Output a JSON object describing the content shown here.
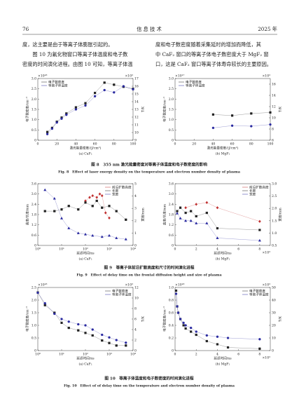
{
  "header": {
    "page": "76",
    "journal": "信 息 技 术",
    "year": "2025 年"
  },
  "paragraphs": {
    "left": [
      "度，这主要是由于等离子体膨胀引起的。",
      "　　图 10 为氟化物窗口等离子体温度和电子数",
      "密度的时间演化进程。由图 10 可知，等离子体温"
    ],
    "right": [
      "度和电子数密度随着采集延时的增加而降低，其",
      "中 CaF₂ 窗口的等离子体电子数密度大于 MgF₂ 窗",
      "口，这是 CaF₂ 窗口等离子体寿命较长的主要原因。"
    ]
  },
  "figures": [
    {
      "caption_cn": "图 8　355 nm 激光能量密度对等离子体温度和电子数密度的影响",
      "caption_en": "Fig. 8　Effect of laser energy density on the temperature and electron number density of plasma",
      "panels": [
        {
          "type": "line",
          "label": "(a) CaF₂",
          "xlabel": "激光能量密度/(J/cm²)",
          "ylabel": "电子数密度/cm⁻³",
          "y2label": "T/K",
          "yexp": "×10¹⁸",
          "y2exp": "×10³",
          "legend": "upper-left",
          "xlim": [
            0,
            100
          ],
          "xticks": [
            0,
            20,
            40,
            60,
            80,
            100
          ],
          "ylim": [
            0,
            3
          ],
          "yticks": [
            0,
            0.5,
            {
              "value": 1,
              "label": "1.0"
            },
            1.5,
            {
              "value": 2,
              "label": "2.0"
            },
            2.5,
            {
              "value": 3,
              "label": "3.0"
            }
          ],
          "y2lim": [
            9,
            17
          ],
          "y2ticks": [
            9,
            10,
            11,
            12,
            13,
            14,
            15,
            16,
            17
          ],
          "series": [
            {
              "name": "电子数密度",
              "color": "#222222",
              "marker": "square",
              "x": [
                10,
                15,
                20,
                25,
                30,
                40,
                50,
                60,
                70,
                80,
                90,
                100
              ],
              "values": [
                0.4,
                0.6,
                0.9,
                1.1,
                1.3,
                1.6,
                1.8,
                2.3,
                2.8,
                2.7,
                2.6,
                2.5
              ]
            },
            {
              "name": "等离子体温度",
              "color": "#2a2aa0",
              "marker": "circle",
              "axis": "y2",
              "x": [
                10,
                15,
                20,
                25,
                30,
                40,
                50,
                60,
                70,
                80,
                90,
                100
              ],
              "values": [
                9.8,
                10.5,
                11.3,
                11.8,
                12.3,
                13,
                13.5,
                14.7,
                15.5,
                15.2,
                16,
                15.6
              ]
            }
          ]
        },
        {
          "type": "line",
          "label": "(b) MgF₂",
          "xlabel": "激光能量密度/(J/cm²)",
          "ylabel": "电子数密度/cm⁻³",
          "y2label": "T/K",
          "yexp": "×10¹⁷",
          "y2exp": "×10³",
          "legend": "upper-left",
          "xlim": [
            0,
            100
          ],
          "xticks": [
            0,
            20,
            40,
            60,
            80,
            100
          ],
          "ylim": [
            0,
            3
          ],
          "yticks": [
            0,
            0.5,
            {
              "value": 1,
              "label": "1.0"
            },
            1.5,
            {
              "value": 2,
              "label": "2.0"
            },
            2.5,
            {
              "value": 3,
              "label": "3.0"
            }
          ],
          "y2lim": [
            6,
            17
          ],
          "y2ticks": [
            6,
            8,
            10,
            12,
            14,
            16
          ],
          "series": [
            {
              "name": "电子数密度",
              "color": "#222222",
              "marker": "square",
              "x": [
                40,
                60,
                80,
                100
              ],
              "values": [
                1.25,
                1.2,
                1.3,
                1.35
              ]
            },
            {
              "name": "等离子体温度",
              "color": "#2a2aa0",
              "marker": "circle",
              "axis": "y2",
              "x": [
                40,
                60,
                80,
                100
              ],
              "values": [
                8.2,
                8.6,
                8.5,
                8.8
              ]
            }
          ]
        }
      ]
    },
    {
      "caption_cn": "图 9　等离子体前沿扩散高度和尺寸的时间演化进程",
      "caption_en": "Fig. 9　Effect of delay time on the frontal diffusion height and size of plasma",
      "panels": [
        {
          "type": "line",
          "label": "(a) CaF₂",
          "xlabel": "延迟时间/ns",
          "ylabel": "高度/长度/mm",
          "y2label": "宽度/mm",
          "xlog": true,
          "legend": "upper-right",
          "xlim": [
            1,
            10000
          ],
          "xticks": [
            {
              "value": 1,
              "label": "10⁰"
            },
            {
              "value": 10,
              "label": "10¹"
            },
            {
              "value": 100,
              "label": "10²"
            },
            {
              "value": 1000,
              "label": "10³"
            },
            {
              "value": 10000,
              "label": "10⁴"
            }
          ],
          "ylim": [
            0,
            3.6
          ],
          "yticks": [
            0,
            0.6,
            1.2,
            1.8,
            2.4,
            {
              "value": 3,
              "label": "3.0"
            },
            3.6
          ],
          "y2lim": [
            0,
            5
          ],
          "y2ticks": [
            0,
            1,
            2,
            3,
            4,
            5
          ],
          "series": [
            {
              "name": "前沿扩散高度",
              "color": "#c03030",
              "marker": "diamond",
              "x": [
                100,
                150,
                200,
                300,
                400,
                500,
                700,
                1000
              ],
              "values": [
                2.6,
                2.8,
                2.9,
                2.8,
                3,
                2.9,
                1.9,
                1.6
              ]
            },
            {
              "name": "长度",
              "color": "#222222",
              "marker": "square",
              "x": [
                2,
                5,
                10,
                20,
                50,
                100,
                200,
                300,
                500,
                1000,
                2000,
                5000
              ],
              "values": [
                2,
                2,
                2.1,
                2.3,
                2.1,
                2.5,
                2.3,
                2.6,
                2.2,
                2.3,
                2,
                1.5
              ]
            },
            {
              "name": "宽度",
              "color": "#2a2aa0",
              "marker": "triangle",
              "axis": "y2",
              "x": [
                2,
                5,
                10,
                20,
                50,
                100,
                200,
                500,
                1000,
                2000,
                5000
              ],
              "values": [
                4.5,
                3.8,
                2.2,
                1.4,
                1,
                0.9,
                0.8,
                0.7,
                0.8,
                0.6,
                0.5
              ]
            }
          ]
        },
        {
          "type": "line",
          "label": "(b) MgF₂",
          "xlabel": "延迟时间/ns",
          "ylabel": "高度/长度/mm",
          "y2label": "宽度/mm",
          "xexp": "×10³",
          "legend": "upper-right",
          "xlim": [
            0,
            9000
          ],
          "xticks": [
            {
              "value": 0,
              "label": "0"
            },
            {
              "value": 2000,
              "label": "2"
            },
            {
              "value": 4000,
              "label": "4"
            },
            {
              "value": 6000,
              "label": "6"
            },
            {
              "value": 8000,
              "label": "8"
            }
          ],
          "ylim": [
            0,
            3.6
          ],
          "yticks": [
            0,
            0.6,
            1.2,
            1.8,
            2.4,
            {
              "value": 3,
              "label": "3.0"
            },
            3.6
          ],
          "y2lim": [
            0.5,
            3
          ],
          "y2ticks": [
            0.5,
            {
              "value": 1,
              "label": "1.0"
            },
            1.5,
            {
              "value": 2,
              "label": "2.0"
            },
            2.5,
            {
              "value": 3,
              "label": "3.0"
            }
          ],
          "series": [
            {
              "name": "前沿扩散高度",
              "color": "#c03030",
              "marker": "diamond",
              "x": [
                1000,
                2000,
                3000,
                4000,
                8000
              ],
              "values": [
                2.2,
                2.4,
                2.5,
                2.2,
                1.4
              ]
            },
            {
              "name": "长度",
              "color": "#222222",
              "marker": "square",
              "x": [
                200,
                500,
                1000,
                1500,
                2000,
                3000,
                4000,
                8000
              ],
              "values": [
                2,
                2.2,
                1.9,
                2,
                1.7,
                1.9,
                1,
                0.9
              ]
            },
            {
              "name": "宽度",
              "color": "#2a2aa0",
              "marker": "triangle",
              "axis": "y2",
              "x": [
                200,
                500,
                1000,
                1500,
                2000,
                3000,
                4000,
                8000
              ],
              "values": [
                1.8,
                1.6,
                1.5,
                1.5,
                1.4,
                1.4,
                0.8,
                0.7
              ]
            }
          ]
        }
      ]
    },
    {
      "caption_cn": "图 10　等离子体温度和电子数密度的时间演化进程",
      "caption_en": "Fig. 10　Effect of of delay time on the temperature and electron number density of plasma",
      "panels": [
        {
          "type": "line",
          "label": "(a) CaF₂",
          "xlabel": "延迟时间/ns",
          "ylabel": "电子数密度/cm⁻³",
          "y2label": "T/K",
          "yexp": "×10¹⁸",
          "y2exp": "×10³",
          "xlog": true,
          "legend": "upper-right",
          "xlim": [
            1,
            10000
          ],
          "xticks": [
            {
              "value": 1,
              "label": "10⁰"
            },
            {
              "value": 10,
              "label": "10¹"
            },
            {
              "value": 100,
              "label": "10²"
            },
            {
              "value": 1000,
              "label": "10³"
            },
            {
              "value": 10000,
              "label": "10⁴"
            }
          ],
          "ylim": [
            0,
            2.5
          ],
          "yticks": [
            0,
            0.5,
            {
              "value": 1,
              "label": "1.0"
            },
            1.5,
            {
              "value": 2,
              "label": "2.0"
            },
            2.5
          ],
          "y2lim": [
            0,
            12
          ],
          "y2ticks": [
            0,
            2,
            4,
            6,
            8,
            10,
            12
          ],
          "series": [
            {
              "name": "电子数密度",
              "color": "#222222",
              "marker": "square",
              "x": [
                1,
                2,
                5,
                10,
                20,
                50,
                100,
                200,
                500,
                1000,
                2000,
                5000
              ],
              "values": [
                2.3,
                1.8,
                1.5,
                1.1,
                0.9,
                0.8,
                0.7,
                0.6,
                0.4,
                0.3,
                0.2,
                0.2
              ]
            },
            {
              "name": "等离子体温度",
              "color": "#2a2aa0",
              "marker": "circle",
              "axis": "y2",
              "x": [
                1,
                2,
                5,
                10,
                20,
                50,
                100,
                200,
                500,
                1000,
                2000,
                5000
              ],
              "values": [
                11,
                9,
                7,
                6,
                5.5,
                5,
                4.8,
                4,
                3,
                2.5,
                2,
                1.5
              ]
            }
          ]
        },
        {
          "type": "line",
          "label": "(b) MgF₂",
          "xlabel": "延迟时间/ns",
          "ylabel": "电子数密度/cm⁻³",
          "y2label": "T/K",
          "yexp": "×10¹⁸",
          "y2exp": "×10³",
          "xexp": "×10³",
          "legend": "upper-right",
          "xlim": [
            0,
            9000
          ],
          "xticks": [
            {
              "value": 0,
              "label": "0"
            },
            {
              "value": 2000,
              "label": "2"
            },
            {
              "value": 4000,
              "label": "4"
            },
            {
              "value": 6000,
              "label": "6"
            },
            {
              "value": 8000,
              "label": "8"
            }
          ],
          "ylim": [
            0,
            1
          ],
          "yticks": [
            0,
            0.2,
            0.4,
            0.6,
            0.8,
            {
              "value": 1,
              "label": "1.0"
            }
          ],
          "y2lim": [
            0,
            50
          ],
          "y2ticks": [
            0,
            10,
            20,
            30,
            40,
            50
          ],
          "series": [
            {
              "name": "电子数密度",
              "color": "#222222",
              "marker": "square",
              "x": [
                100,
                200,
                300,
                500,
                800,
                1000,
                1500,
                2000,
                3000,
                4000,
                5000,
                8000
              ],
              "values": [
                0.95,
                0.7,
                0.6,
                0.5,
                0.4,
                0.35,
                0.3,
                0.25,
                0.15,
                0.1,
                0.05,
                0.03
              ]
            },
            {
              "name": "等离子体温度",
              "color": "#2a2aa0",
              "marker": "circle",
              "axis": "y2",
              "x": [
                100,
                200,
                300,
                500,
                800,
                1000,
                1500,
                2000,
                3000,
                4000,
                5000,
                8000
              ],
              "values": [
                45,
                35,
                30,
                25,
                22,
                20,
                18,
                15,
                12,
                11,
                10,
                9
              ]
            }
          ]
        }
      ]
    }
  ]
}
